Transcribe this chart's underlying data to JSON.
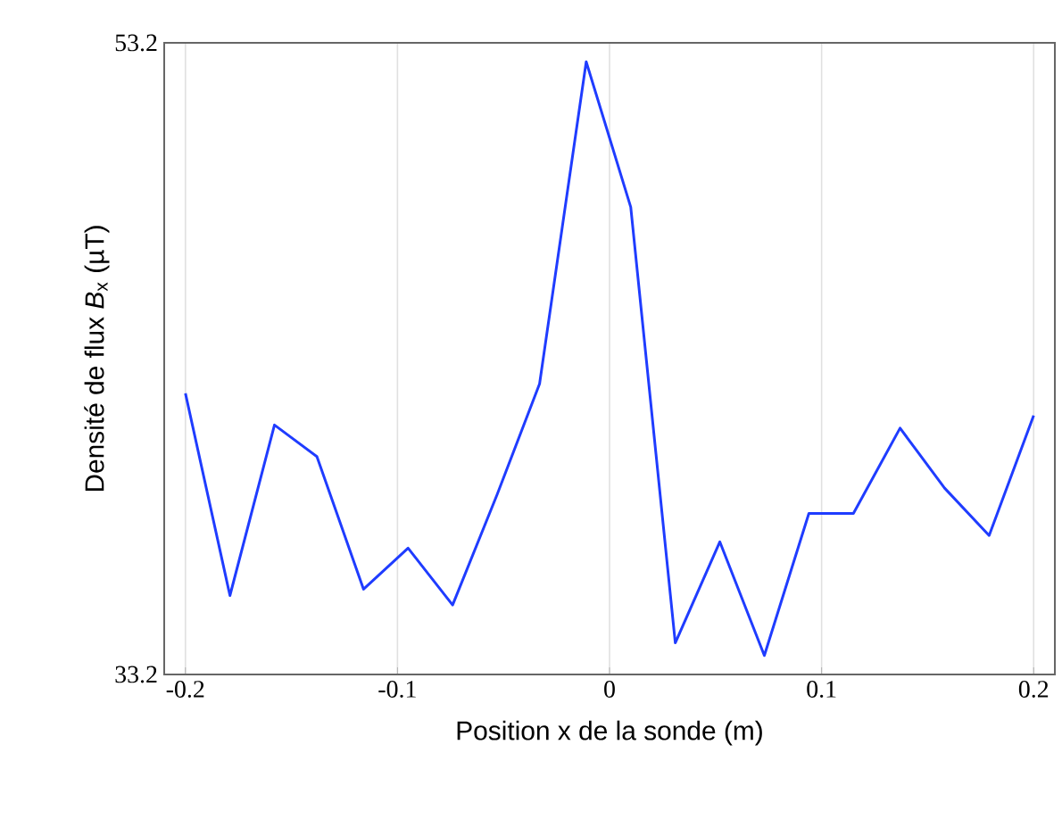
{
  "chart_data": {
    "type": "line",
    "xlabel": "Position x de la sonde (m)",
    "ylabel": "Densité de flux *B*$_{x}$ (µT)",
    "x": [
      -0.2,
      -0.179,
      -0.158,
      -0.138,
      -0.116,
      -0.095,
      -0.074,
      -0.053,
      -0.033,
      -0.011,
      0.01,
      0.031,
      0.052,
      0.073,
      0.094,
      0.115,
      0.137,
      0.158,
      0.179,
      0.2
    ],
    "series": [
      {
        "color": "#1f3cff",
        "values": [
          42.1,
          35.7,
          41.1,
          40.1,
          35.9,
          37.2,
          35.4,
          38.9,
          42.4,
          52.6,
          48.0,
          34.2,
          37.4,
          33.8,
          38.3,
          38.3,
          41.0,
          39.1,
          37.6,
          41.4
        ]
      }
    ],
    "xlim": [
      -0.21,
      0.21
    ],
    "ylim": [
      33.2,
      53.2
    ],
    "xticks": [
      -0.2,
      -0.1,
      0,
      0.1,
      0.2
    ],
    "yticks": [
      33.2,
      53.2
    ],
    "grid": "x",
    "marker": "none",
    "line_style": "solid"
  }
}
